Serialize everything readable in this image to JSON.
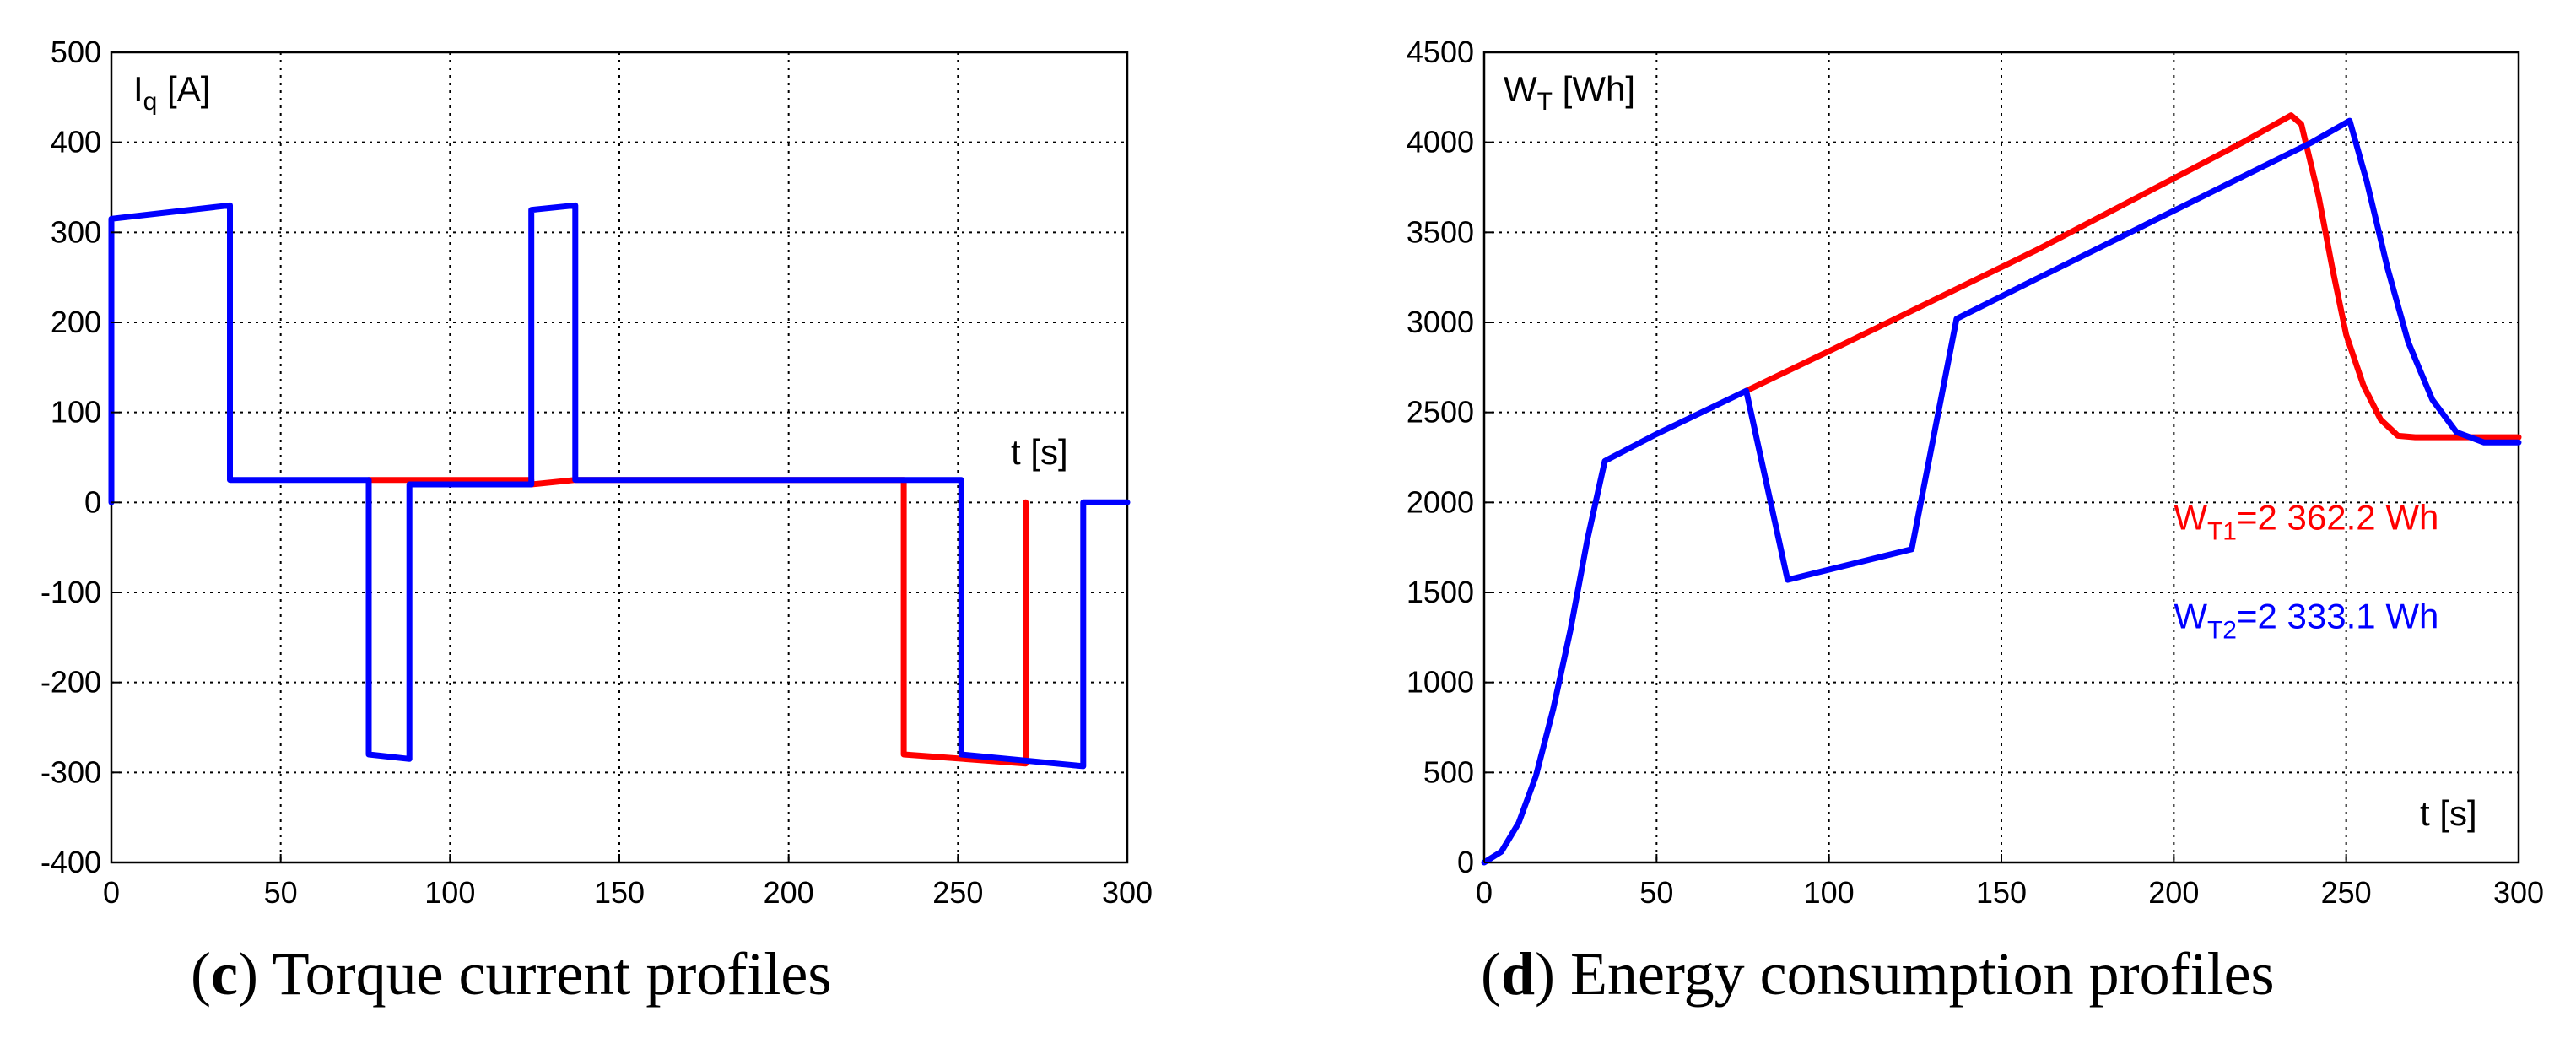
{
  "chart_data": [
    {
      "id": "c",
      "type": "line",
      "caption_letter": "c",
      "caption_text": " Torque current profiles",
      "ylabel_main": "I",
      "ylabel_sub": "q",
      "ylabel_unit": " [A]",
      "xlabel": "t [s]",
      "xlim": [
        0,
        300
      ],
      "ylim": [
        -400,
        500
      ],
      "xticks": [
        0,
        50,
        100,
        150,
        200,
        250,
        300
      ],
      "yticks": [
        500,
        400,
        300,
        200,
        100,
        0,
        -100,
        -200,
        -300,
        -400
      ],
      "grid": true,
      "annotations": [],
      "series": [
        {
          "name": "red",
          "color": "#ff0000",
          "x": [
            76,
            124,
            124,
            137,
            234,
            234,
            270,
            270
          ],
          "y": [
            25,
            25,
            20,
            25,
            25,
            -280,
            -290,
            0
          ]
        },
        {
          "name": "blue",
          "color": "#0000ff",
          "x": [
            0,
            0,
            35,
            35,
            76,
            76,
            88,
            88,
            124,
            124,
            137,
            137,
            251,
            251,
            287,
            287,
            300
          ],
          "y": [
            0,
            315,
            330,
            25,
            25,
            -280,
            -285,
            20,
            20,
            325,
            330,
            25,
            25,
            -280,
            -293,
            0,
            0
          ]
        }
      ]
    },
    {
      "id": "d",
      "type": "line",
      "caption_letter": "d",
      "caption_text": " Energy consumption profiles",
      "ylabel_main": "W",
      "ylabel_sub": "T",
      "ylabel_unit": " [Wh]",
      "xlabel": "t [s]",
      "xlim": [
        0,
        300
      ],
      "ylim": [
        0,
        4500
      ],
      "xticks": [
        0,
        50,
        100,
        150,
        200,
        250,
        300
      ],
      "yticks": [
        4500,
        4000,
        3500,
        3000,
        2500,
        2000,
        1500,
        1000,
        500,
        0
      ],
      "grid": true,
      "annotations": [
        {
          "main": "W",
          "sub": "T1",
          "rest": "=2 362.2 Wh",
          "color": "#ff0000",
          "at_x": 200,
          "at_y": 1850
        },
        {
          "main": "W",
          "sub": "T2",
          "rest": "=2 333.1 Wh",
          "color": "#0000ff",
          "at_x": 200,
          "at_y": 1300
        }
      ],
      "series": [
        {
          "name": "red",
          "color": "#ff0000",
          "x": [
            76,
            100,
            130,
            160,
            190,
            220,
            234,
            237,
            242,
            246,
            250,
            255,
            260,
            265,
            270,
            300
          ],
          "y": [
            2620,
            2840,
            3120,
            3400,
            3700,
            4000,
            4150,
            4100,
            3700,
            3300,
            2930,
            2650,
            2460,
            2370,
            2362,
            2362
          ]
        },
        {
          "name": "blue",
          "color": "#0000ff",
          "x": [
            0,
            5,
            10,
            15,
            20,
            25,
            30,
            35,
            50,
            76,
            88,
            124,
            137,
            160,
            200,
            240,
            251,
            256,
            262,
            268,
            275,
            282,
            290,
            300
          ],
          "y": [
            0,
            60,
            220,
            480,
            850,
            1290,
            1800,
            2230,
            2380,
            2620,
            1570,
            1740,
            3020,
            3240,
            3620,
            4000,
            4120,
            3780,
            3300,
            2890,
            2570,
            2390,
            2333,
            2333
          ]
        }
      ]
    }
  ]
}
